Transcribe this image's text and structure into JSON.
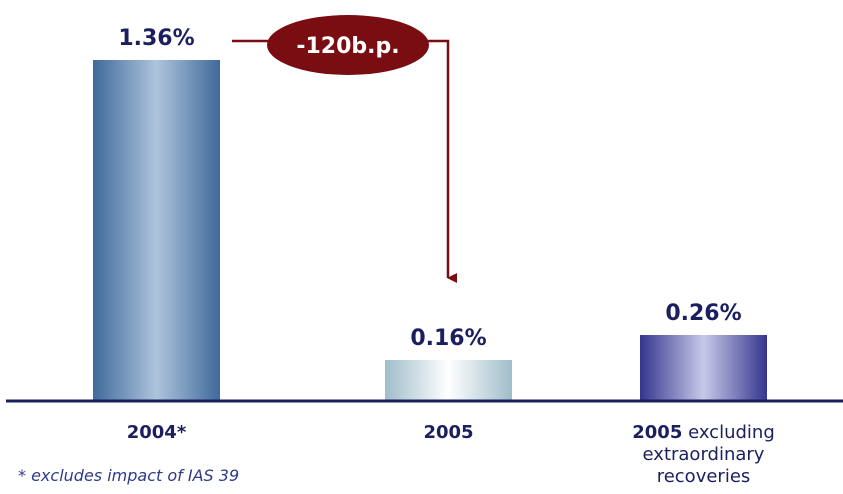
{
  "chart_data": {
    "type": "bar",
    "categories": [
      "2004*",
      "2005",
      "2005 excluding extraordinary recoveries"
    ],
    "category_labels": [
      {
        "bold": "2004*",
        "rest": []
      },
      {
        "bold": "2005",
        "rest": []
      },
      {
        "bold": "2005",
        "rest": [
          "excluding",
          "extraordinary",
          "recoveries"
        ]
      }
    ],
    "values": [
      1.36,
      0.16,
      0.26
    ],
    "value_labels": [
      "1.36%",
      "0.16%",
      "0.26%"
    ],
    "ylim": [
      0,
      1.5
    ],
    "grid": false,
    "legend": "none",
    "annotation": {
      "text": "-120b.p.",
      "from_category": 0,
      "to_category": 1
    },
    "colors": {
      "bar_2004_edge": "#3f6a9b",
      "bar_2004_center": "#aec4dc",
      "bar_2005_edge": "#9fbdca",
      "bar_2005_center": "#ffffff",
      "bar_2005x_edge": "#35358f",
      "bar_2005x_center": "#c7c9e8",
      "axis": "#1b1f5e",
      "annotation": "#7a0d12",
      "text": "#1b1f5e"
    }
  },
  "footnote": "* excludes impact of IAS 39"
}
